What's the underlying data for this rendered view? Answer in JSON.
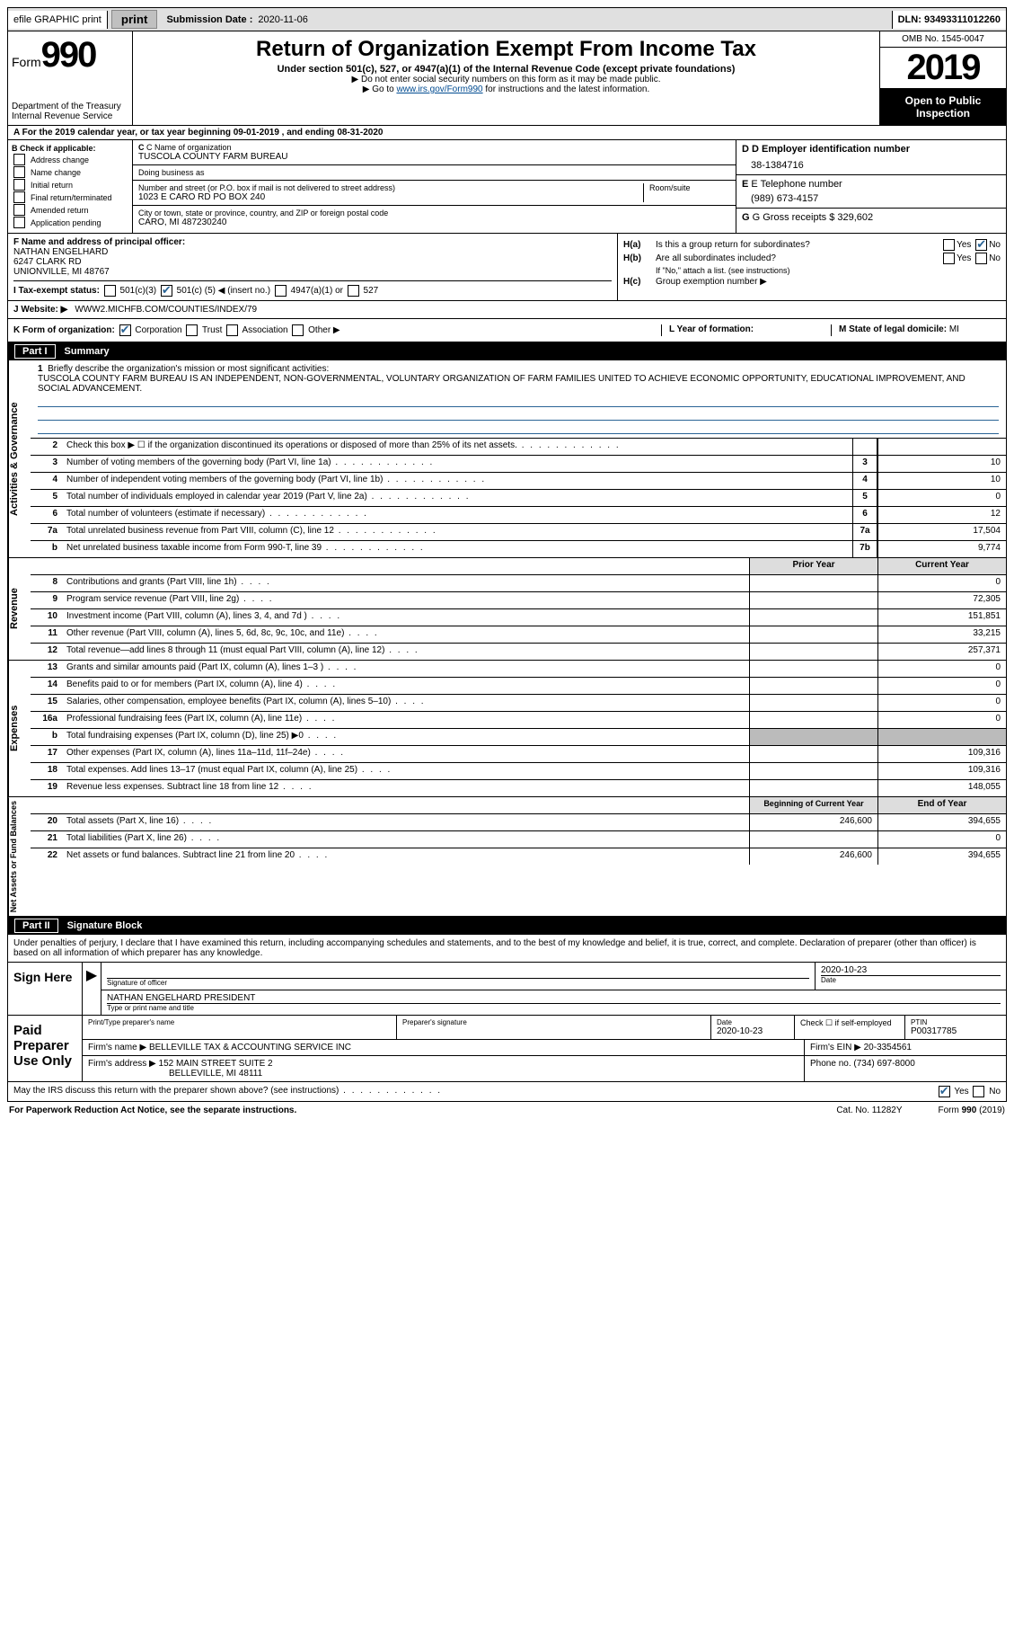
{
  "topbar": {
    "efile": "efile GRAPHIC print",
    "submission_label": "Submission Date :",
    "submission_date": "2020-11-06",
    "dln_label": "DLN:",
    "dln": "93493311012260"
  },
  "header": {
    "form_word": "Form",
    "form_number": "990",
    "dept": "Department of the Treasury\nInternal Revenue Service",
    "title": "Return of Organization Exempt From Income Tax",
    "sub": "Under section 501(c), 527, or 4947(a)(1) of the Internal Revenue Code (except private foundations)",
    "note1": "▶ Do not enter social security numbers on this form as it may be made public.",
    "note2_pre": "▶ Go to ",
    "note2_link": "www.irs.gov/Form990",
    "note2_post": " for instructions and the latest information.",
    "omb": "OMB No. 1545-0047",
    "year": "2019",
    "open": "Open to Public Inspection"
  },
  "row_a": "A For the 2019 calendar year, or tax year beginning 09-01-2019   , and ending 08-31-2020",
  "col_b": {
    "title": "B Check if applicable:",
    "items": [
      "Address change",
      "Name change",
      "Initial return",
      "Final return/terminated",
      "Amended return",
      "Application pending"
    ]
  },
  "col_c": {
    "name_label": "C Name of organization",
    "name": "TUSCOLA COUNTY FARM BUREAU",
    "dba_label": "Doing business as",
    "dba": "",
    "addr_label": "Number and street (or P.O. box if mail is not delivered to street address)",
    "room_label": "Room/suite",
    "addr": "1023 E CARO RD PO BOX 240",
    "city_label": "City or town, state or province, country, and ZIP or foreign postal code",
    "city": "CARO, MI  487230240"
  },
  "col_d": {
    "label": "D Employer identification number",
    "val": "38-1384716"
  },
  "col_e": {
    "label": "E Telephone number",
    "val": "(989) 673-4157"
  },
  "col_g": {
    "label": "G Gross receipts $",
    "val": "329,602"
  },
  "row_f": {
    "label": "F  Name and address of principal officer:",
    "name": "NATHAN ENGELHARD",
    "addr1": "6247 CLARK RD",
    "addr2": "UNIONVILLE, MI  48767"
  },
  "row_h": {
    "a_label": "H(a)",
    "a_text": "Is this a group return for subordinates?",
    "a_no": true,
    "b_label": "H(b)",
    "b_text": "Are all subordinates included?",
    "b_note": "If \"No,\" attach a list. (see instructions)",
    "c_label": "H(c)",
    "c_text": "Group exemption number ▶"
  },
  "row_i": {
    "label": "I  Tax-exempt status:",
    "opt1": "501(c)(3)",
    "opt2_pre": "501(c) (",
    "opt2_num": "5",
    "opt2_post": ") ◀ (insert no.)",
    "opt3": "4947(a)(1) or",
    "opt4": "527",
    "checked": 1
  },
  "row_j": {
    "label": "J   Website: ▶",
    "val": "WWW2.MICHFB.COM/COUNTIES/INDEX/79"
  },
  "row_k": {
    "label": "K Form of organization:",
    "opts": [
      "Corporation",
      "Trust",
      "Association",
      "Other ▶"
    ],
    "checked": 0
  },
  "row_l": {
    "label": "L Year of formation:",
    "val": ""
  },
  "row_m": {
    "label": "M State of legal domicile:",
    "val": "MI"
  },
  "part1": {
    "num": "Part I",
    "title": "Summary"
  },
  "mission": {
    "num": "1",
    "label": "Briefly describe the organization's mission or most significant activities:",
    "text": "TUSCOLA COUNTY FARM BUREAU IS AN INDEPENDENT, NON-GOVERNMENTAL, VOLUNTARY ORGANIZATION OF FARM FAMILIES UNITED TO ACHIEVE ECONOMIC OPPORTUNITY, EDUCATIONAL IMPROVEMENT, AND SOCIAL ADVANCEMENT."
  },
  "gov_lines": [
    {
      "num": "2",
      "desc": "Check this box ▶ ☐  if the organization discontinued its operations or disposed of more than 25% of its net assets.",
      "tag": "",
      "val": ""
    },
    {
      "num": "3",
      "desc": "Number of voting members of the governing body (Part VI, line 1a)",
      "tag": "3",
      "val": "10"
    },
    {
      "num": "4",
      "desc": "Number of independent voting members of the governing body (Part VI, line 1b)",
      "tag": "4",
      "val": "10"
    },
    {
      "num": "5",
      "desc": "Total number of individuals employed in calendar year 2019 (Part V, line 2a)",
      "tag": "5",
      "val": "0"
    },
    {
      "num": "6",
      "desc": "Total number of volunteers (estimate if necessary)",
      "tag": "6",
      "val": "12"
    },
    {
      "num": "7a",
      "desc": "Total unrelated business revenue from Part VIII, column (C), line 12",
      "tag": "7a",
      "val": "17,504"
    },
    {
      "num": "b",
      "desc": "Net unrelated business taxable income from Form 990-T, line 39",
      "tag": "7b",
      "val": "9,774"
    }
  ],
  "col_headers": {
    "prior": "Prior Year",
    "current": "Current Year"
  },
  "revenue_lines": [
    {
      "num": "8",
      "desc": "Contributions and grants (Part VIII, line 1h)",
      "prior": "",
      "cur": "0"
    },
    {
      "num": "9",
      "desc": "Program service revenue (Part VIII, line 2g)",
      "prior": "",
      "cur": "72,305"
    },
    {
      "num": "10",
      "desc": "Investment income (Part VIII, column (A), lines 3, 4, and 7d )",
      "prior": "",
      "cur": "151,851"
    },
    {
      "num": "11",
      "desc": "Other revenue (Part VIII, column (A), lines 5, 6d, 8c, 9c, 10c, and 11e)",
      "prior": "",
      "cur": "33,215"
    },
    {
      "num": "12",
      "desc": "Total revenue—add lines 8 through 11 (must equal Part VIII, column (A), line 12)",
      "prior": "",
      "cur": "257,371"
    }
  ],
  "expense_lines": [
    {
      "num": "13",
      "desc": "Grants and similar amounts paid (Part IX, column (A), lines 1–3 )",
      "prior": "",
      "cur": "0"
    },
    {
      "num": "14",
      "desc": "Benefits paid to or for members (Part IX, column (A), line 4)",
      "prior": "",
      "cur": "0"
    },
    {
      "num": "15",
      "desc": "Salaries, other compensation, employee benefits (Part IX, column (A), lines 5–10)",
      "prior": "",
      "cur": "0"
    },
    {
      "num": "16a",
      "desc": "Professional fundraising fees (Part IX, column (A), line 11e)",
      "prior": "",
      "cur": "0"
    },
    {
      "num": "b",
      "desc": "Total fundraising expenses (Part IX, column (D), line 25) ▶0",
      "prior": "GRAY",
      "cur": "GRAY"
    },
    {
      "num": "17",
      "desc": "Other expenses (Part IX, column (A), lines 11a–11d, 11f–24e)",
      "prior": "",
      "cur": "109,316"
    },
    {
      "num": "18",
      "desc": "Total expenses. Add lines 13–17 (must equal Part IX, column (A), line 25)",
      "prior": "",
      "cur": "109,316"
    },
    {
      "num": "19",
      "desc": "Revenue less expenses. Subtract line 18 from line 12",
      "prior": "",
      "cur": "148,055"
    }
  ],
  "net_headers": {
    "begin": "Beginning of Current Year",
    "end": "End of Year"
  },
  "net_lines": [
    {
      "num": "20",
      "desc": "Total assets (Part X, line 16)",
      "prior": "246,600",
      "cur": "394,655"
    },
    {
      "num": "21",
      "desc": "Total liabilities (Part X, line 26)",
      "prior": "",
      "cur": "0"
    },
    {
      "num": "22",
      "desc": "Net assets or fund balances. Subtract line 21 from line 20",
      "prior": "246,600",
      "cur": "394,655"
    }
  ],
  "sides": {
    "gov": "Activities & Governance",
    "rev": "Revenue",
    "exp": "Expenses",
    "net": "Net Assets or Fund Balances"
  },
  "part2": {
    "num": "Part II",
    "title": "Signature Block"
  },
  "sig": {
    "intro": "Under penalties of perjury, I declare that I have examined this return, including accompanying schedules and statements, and to the best of my knowledge and belief, it is true, correct, and complete. Declaration of preparer (other than officer) is based on all information of which preparer has any knowledge.",
    "sign_here": "Sign Here",
    "sig_of_officer": "Signature of officer",
    "sig_date": "2020-10-23",
    "date_label": "Date",
    "officer_name": "NATHAN ENGELHARD PRESIDENT",
    "officer_label": "Type or print name and title",
    "paid": "Paid Preparer Use Only",
    "prep_name_label": "Print/Type preparer's name",
    "prep_sig_label": "Preparer's signature",
    "prep_date_label": "Date",
    "prep_date": "2020-10-23",
    "self_emp": "Check ☐ if self-employed",
    "ptin_label": "PTIN",
    "ptin": "P00317785",
    "firm_name_label": "Firm's name    ▶",
    "firm_name": "BELLEVILLE TAX & ACCOUNTING SERVICE INC",
    "firm_ein_label": "Firm's EIN ▶",
    "firm_ein": "20-3354561",
    "firm_addr_label": "Firm's address ▶",
    "firm_addr1": "152 MAIN STREET SUITE 2",
    "firm_addr2": "BELLEVILLE, MI  48111",
    "firm_phone_label": "Phone no.",
    "firm_phone": "(734) 697-8000",
    "discuss": "May the IRS discuss this return with the preparer shown above? (see instructions)",
    "discuss_yes": true
  },
  "footer": {
    "left": "For Paperwork Reduction Act Notice, see the separate instructions.",
    "mid": "Cat. No. 11282Y",
    "right": "Form 990 (2019)"
  }
}
